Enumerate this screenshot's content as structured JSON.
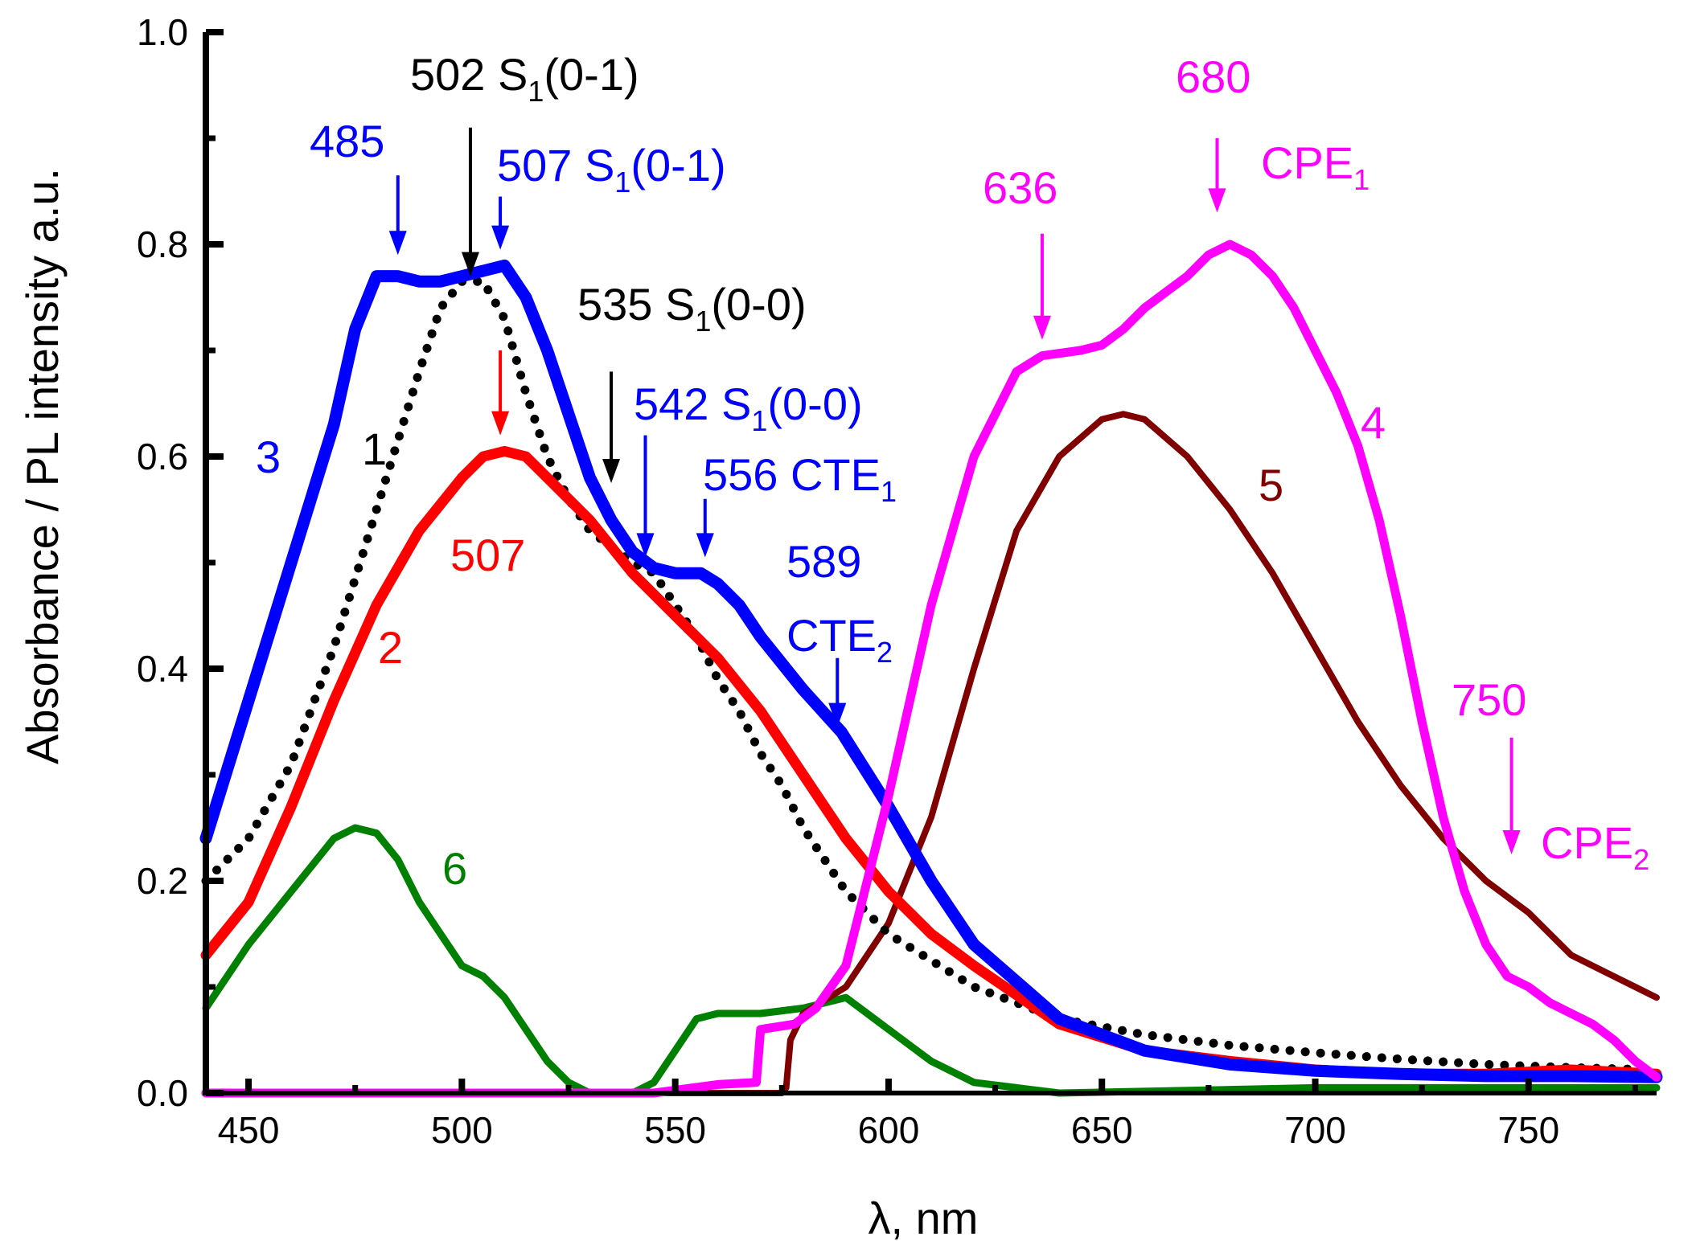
{
  "chart_data": {
    "type": "line",
    "xlabel": "λ, nm",
    "ylabel": "Absorbance / PL intensity a.u.",
    "xlim": [
      440,
      780
    ],
    "ylim": [
      0,
      1.0
    ],
    "x_ticks": [
      450,
      500,
      550,
      600,
      650,
      700,
      750
    ],
    "x_tick_labels": [
      "450",
      "500",
      "550",
      "600",
      "650",
      "700",
      "750"
    ],
    "y_ticks": [
      0,
      0.2,
      0.4,
      0.6,
      0.8,
      1.0
    ],
    "y_tick_labels": [
      "0.0",
      "0.2",
      "0.4",
      "0.6",
      "0.8",
      "1.0"
    ],
    "grid": false,
    "series": [
      {
        "name": "1",
        "color": "#000000",
        "style": "dotted",
        "x": [
          440,
          450,
          460,
          470,
          480,
          490,
          495,
          500,
          505,
          510,
          515,
          520,
          525,
          530,
          535,
          540,
          545,
          550,
          555,
          560,
          565,
          570,
          575,
          580,
          590,
          600,
          620,
          640,
          660,
          680,
          700,
          720,
          740,
          760,
          780
        ],
        "y": [
          0.2,
          0.24,
          0.31,
          0.42,
          0.55,
          0.68,
          0.74,
          0.765,
          0.765,
          0.73,
          0.66,
          0.6,
          0.56,
          0.53,
          0.515,
          0.5,
          0.49,
          0.46,
          0.43,
          0.39,
          0.36,
          0.32,
          0.29,
          0.25,
          0.19,
          0.15,
          0.1,
          0.07,
          0.055,
          0.045,
          0.038,
          0.032,
          0.027,
          0.024,
          0.022
        ]
      },
      {
        "name": "2",
        "color": "#ff0000",
        "style": "solid",
        "x": [
          440,
          450,
          460,
          470,
          480,
          490,
          500,
          505,
          510,
          515,
          520,
          530,
          540,
          550,
          560,
          570,
          580,
          590,
          600,
          610,
          620,
          640,
          660,
          680,
          700,
          720,
          740,
          760,
          780
        ],
        "y": [
          0.13,
          0.18,
          0.27,
          0.37,
          0.46,
          0.53,
          0.58,
          0.6,
          0.605,
          0.6,
          0.58,
          0.54,
          0.49,
          0.45,
          0.41,
          0.36,
          0.3,
          0.24,
          0.19,
          0.15,
          0.12,
          0.065,
          0.04,
          0.03,
          0.022,
          0.018,
          0.018,
          0.022,
          0.018
        ]
      },
      {
        "name": "3",
        "color": "#0000ff",
        "style": "solid",
        "x": [
          440,
          450,
          460,
          470,
          475,
          480,
          485,
          490,
          495,
          500,
          505,
          510,
          515,
          520,
          525,
          530,
          535,
          540,
          545,
          550,
          556,
          560,
          565,
          570,
          580,
          589,
          600,
          610,
          620,
          640,
          660,
          680,
          700,
          720,
          740,
          760,
          780
        ],
        "y": [
          0.24,
          0.37,
          0.5,
          0.63,
          0.72,
          0.77,
          0.77,
          0.765,
          0.765,
          0.77,
          0.775,
          0.78,
          0.75,
          0.7,
          0.64,
          0.58,
          0.54,
          0.51,
          0.495,
          0.49,
          0.49,
          0.48,
          0.46,
          0.43,
          0.38,
          0.34,
          0.27,
          0.2,
          0.14,
          0.07,
          0.04,
          0.027,
          0.021,
          0.018,
          0.016,
          0.016,
          0.015
        ]
      },
      {
        "name": "4",
        "color": "#ff00ff",
        "style": "solid",
        "x": [
          440,
          545,
          560,
          569,
          570,
          578,
          583,
          590,
          600,
          610,
          620,
          630,
          636,
          645,
          650,
          655,
          660,
          665,
          670,
          675,
          680,
          685,
          690,
          695,
          700,
          705,
          710,
          715,
          720,
          725,
          730,
          735,
          740,
          745,
          750,
          755,
          760,
          765,
          770,
          775,
          780
        ],
        "y": [
          0,
          0,
          0.008,
          0.01,
          0.06,
          0.065,
          0.08,
          0.12,
          0.28,
          0.46,
          0.6,
          0.68,
          0.695,
          0.7,
          0.705,
          0.72,
          0.74,
          0.755,
          0.77,
          0.79,
          0.8,
          0.79,
          0.77,
          0.74,
          0.7,
          0.66,
          0.61,
          0.54,
          0.45,
          0.35,
          0.26,
          0.19,
          0.14,
          0.11,
          0.1,
          0.085,
          0.075,
          0.065,
          0.05,
          0.03,
          0.015
        ]
      },
      {
        "name": "5",
        "color": "#800000",
        "style": "solid",
        "x": [
          440,
          575,
          576,
          577,
          580,
          590,
          600,
          610,
          620,
          630,
          640,
          650,
          655,
          660,
          670,
          680,
          690,
          700,
          710,
          720,
          730,
          740,
          750,
          760,
          770,
          780
        ],
        "y": [
          0,
          0,
          0.005,
          0.05,
          0.075,
          0.1,
          0.16,
          0.26,
          0.4,
          0.53,
          0.6,
          0.635,
          0.64,
          0.635,
          0.6,
          0.55,
          0.49,
          0.42,
          0.35,
          0.29,
          0.24,
          0.2,
          0.17,
          0.13,
          0.11,
          0.09
        ]
      },
      {
        "name": "6",
        "color": "#008000",
        "style": "solid",
        "x": [
          440,
          450,
          460,
          470,
          475,
          480,
          485,
          490,
          495,
          500,
          505,
          510,
          515,
          520,
          525,
          530,
          535,
          540,
          545,
          550,
          555,
          560,
          570,
          580,
          590,
          600,
          610,
          620,
          630,
          640,
          700,
          780
        ],
        "y": [
          0.08,
          0.14,
          0.19,
          0.24,
          0.25,
          0.245,
          0.22,
          0.18,
          0.15,
          0.12,
          0.11,
          0.09,
          0.06,
          0.03,
          0.01,
          0.0,
          0.0,
          0.0,
          0.01,
          0.04,
          0.07,
          0.075,
          0.075,
          0.08,
          0.09,
          0.06,
          0.03,
          0.01,
          0.005,
          0.0,
          0.005,
          0.005
        ]
      }
    ],
    "annotations": [
      {
        "text": "502 S",
        "sub": "1",
        "tail": "(0-1)",
        "color": "#000000",
        "arrow": {
          "x": 502,
          "y_top": 0.91,
          "y_bottom": 0.77
        }
      },
      {
        "text": "485",
        "sub": "",
        "tail": "",
        "color": "#0000ff",
        "arrow": {
          "x": 485,
          "y_top": 0.865,
          "y_bottom": 0.79
        }
      },
      {
        "text": "507 S",
        "sub": "1",
        "tail": "(0-1)",
        "color": "#0000ff",
        "arrow": {
          "x": 509,
          "y_top": 0.845,
          "y_bottom": 0.795
        }
      },
      {
        "text": "535 S",
        "sub": "1",
        "tail": "(0-0)",
        "color": "#000000",
        "arrow": {
          "x": 535,
          "y_top": 0.68,
          "y_bottom": 0.575
        }
      },
      {
        "text": "542 S",
        "sub": "1",
        "tail": "(0-0)",
        "color": "#0000ff",
        "arrow": {
          "x": 543,
          "y_top": 0.62,
          "y_bottom": 0.505
        }
      },
      {
        "text": "556 CTE",
        "sub": "1",
        "tail": "",
        "color": "#0000ff",
        "arrow": {
          "x": 557,
          "y_top": 0.56,
          "y_bottom": 0.505
        }
      },
      {
        "text": "589",
        "sub": "",
        "tail": "",
        "color": "#0000ff",
        "arrow": null
      },
      {
        "text": "CTE",
        "sub": "2",
        "tail": "",
        "color": "#0000ff",
        "arrow": {
          "x": 588,
          "y_top": 0.41,
          "y_bottom": 0.345
        }
      },
      {
        "text": "507",
        "sub": "",
        "tail": "",
        "color": "#ff0000",
        "arrow": {
          "x": 509,
          "y_top": 0.7,
          "y_bottom": 0.62
        }
      },
      {
        "text": "636",
        "sub": "",
        "tail": "",
        "color": "#ff00ff",
        "arrow": {
          "x": 636,
          "y_top": 0.81,
          "y_bottom": 0.71
        }
      },
      {
        "text": "680",
        "sub": "",
        "tail": "",
        "color": "#ff00ff",
        "arrow": {
          "x": 677,
          "y_top": 0.9,
          "y_bottom": 0.83
        }
      },
      {
        "text": "CPE",
        "sub": "1",
        "tail": "",
        "color": "#ff00ff",
        "arrow": null
      },
      {
        "text": "750",
        "sub": "",
        "tail": "",
        "color": "#ff00ff",
        "arrow": {
          "x": 746,
          "y_top": 0.335,
          "y_bottom": 0.225
        }
      },
      {
        "text": "CPE",
        "sub": "2",
        "tail": "",
        "color": "#ff00ff",
        "arrow": null
      },
      {
        "text": "3",
        "sub": "",
        "tail": "",
        "color": "#0000ff",
        "arrow": null
      },
      {
        "text": "1",
        "sub": "",
        "tail": "",
        "color": "#000000",
        "arrow": null
      },
      {
        "text": "2",
        "sub": "",
        "tail": "",
        "color": "#ff0000",
        "arrow": null
      },
      {
        "text": "4",
        "sub": "",
        "tail": "",
        "color": "#ff00ff",
        "arrow": null
      },
      {
        "text": "5",
        "sub": "",
        "tail": "",
        "color": "#800000",
        "arrow": null
      },
      {
        "text": "6",
        "sub": "",
        "tail": "",
        "color": "#008000",
        "arrow": null
      }
    ]
  }
}
